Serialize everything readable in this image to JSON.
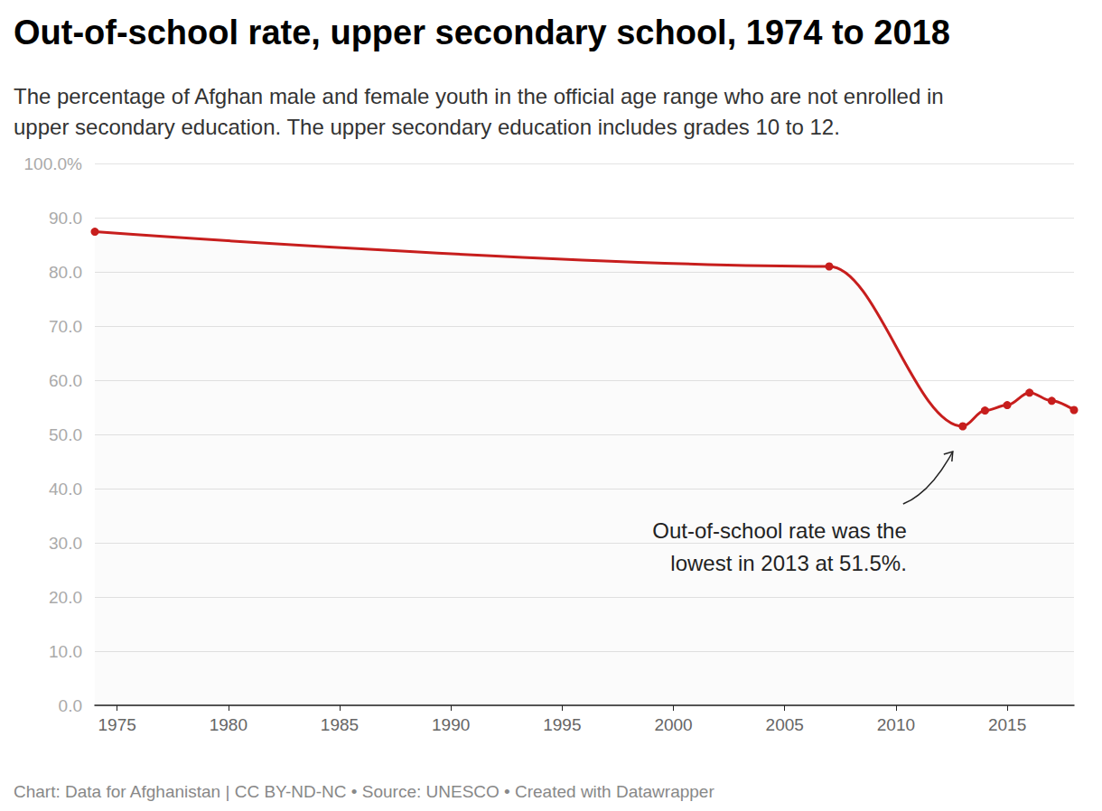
{
  "chart_data": {
    "type": "line",
    "title": "Out-of-school rate, upper secondary school, 1974 to 2018",
    "subtitle": "The percentage of Afghan male and female youth in the official age range who are not enrolled in\nupper secondary education. The upper secondary education includes grades 10 to 12.",
    "source": "Chart: Data for Afghanistan | CC BY-ND-NC • Source: UNESCO • Created with Datawrapper",
    "x": [
      1974,
      2007,
      2013,
      2014,
      2015,
      2016,
      2017,
      2018
    ],
    "values": [
      87.4,
      81.0,
      51.5,
      54.4,
      55.4,
      57.7,
      56.2,
      54.5
    ],
    "color": "#c71e1d",
    "marker": "circle",
    "line_style": "solid",
    "xlim": [
      1974,
      2018
    ],
    "xticks": [
      1975,
      1980,
      1985,
      1990,
      1995,
      2000,
      2005,
      2010,
      2015
    ],
    "ylim": [
      0,
      100
    ],
    "yticks": [
      {
        "value": 0,
        "label": "0.0"
      },
      {
        "value": 10,
        "label": "10.0"
      },
      {
        "value": 20,
        "label": "20.0"
      },
      {
        "value": 30,
        "label": "30.0"
      },
      {
        "value": 40,
        "label": "40.0"
      },
      {
        "value": 50,
        "label": "50.0"
      },
      {
        "value": 60,
        "label": "60.0"
      },
      {
        "value": 70,
        "label": "70.0"
      },
      {
        "value": 80,
        "label": "80.0"
      },
      {
        "value": 90,
        "label": "90.0"
      },
      {
        "value": 100,
        "label": "100.0%"
      }
    ],
    "grid": true,
    "annotations": [
      {
        "text": "Out-of-school rate was the\nlowest in 2013 at 51.5%.",
        "x": 2013,
        "y": 51.5
      }
    ]
  }
}
